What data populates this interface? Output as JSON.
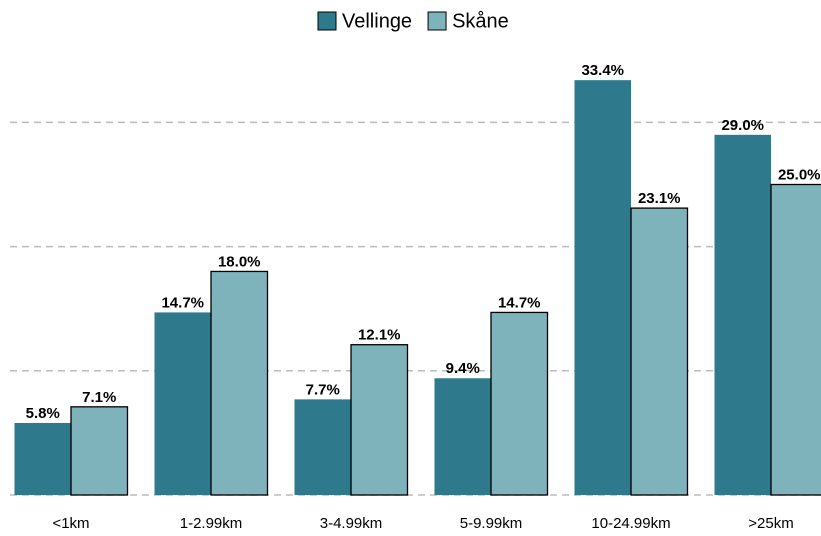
{
  "chart_data": {
    "type": "bar",
    "categories": [
      "<1km",
      "1-2.99km",
      "3-4.99km",
      "5-9.99km",
      "10-24.99km",
      ">25km"
    ],
    "series": [
      {
        "name": "Vellinge",
        "color": "#2e7a8c",
        "values": [
          5.8,
          14.7,
          7.7,
          9.4,
          33.4,
          29.0
        ],
        "value_labels": [
          "5.8%",
          "14.7%",
          "7.7%",
          "9.4%",
          "33.4%",
          "29.0%"
        ]
      },
      {
        "name": "Skåne",
        "color": "#7fb3bb",
        "values": [
          7.1,
          18.0,
          12.1,
          14.7,
          23.1,
          25.0
        ],
        "value_labels": [
          "7.1%",
          "18.0%",
          "12.1%",
          "14.7%",
          "23.1%",
          "25.0%"
        ]
      }
    ],
    "ylim": [
      0,
      36
    ],
    "yticks": [
      0,
      10,
      20,
      30
    ],
    "grid": true
  }
}
